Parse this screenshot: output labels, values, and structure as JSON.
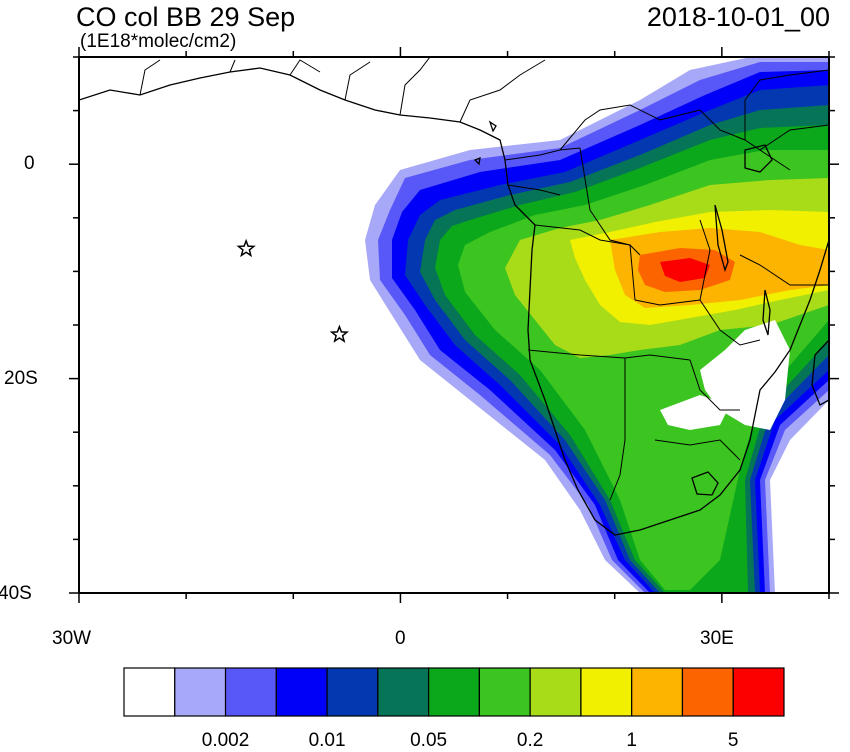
{
  "title_left": "CO col BB 29 Sep",
  "subtitle": "(1E18*molec/cm2)",
  "title_right": "2018-10-01_00",
  "y_tick_labels": [
    "0",
    "20S",
    "40S"
  ],
  "x_tick_labels": [
    "30W",
    "0",
    "30E"
  ],
  "map": {
    "projection": "cylindrical equidistant",
    "lon_range": [
      -30,
      40
    ],
    "lat_range": [
      -40,
      10
    ],
    "markers": [
      {
        "type": "star",
        "lon": -14.4,
        "lat": -7.9
      },
      {
        "type": "star",
        "lon": -5.7,
        "lat": -15.9
      }
    ]
  },
  "colorbar": {
    "levels": [
      "0.002",
      "0.01",
      "0.05",
      "0.2",
      "1",
      "5"
    ],
    "colors": [
      "#ffffff",
      "#a8a8f8",
      "#5858f8",
      "#0000f8",
      "#0438b0",
      "#067456",
      "#0aa81a",
      "#3cc420",
      "#a8dc18",
      "#f0f000",
      "#fcb400",
      "#fc6400",
      "#fc0000"
    ]
  }
}
